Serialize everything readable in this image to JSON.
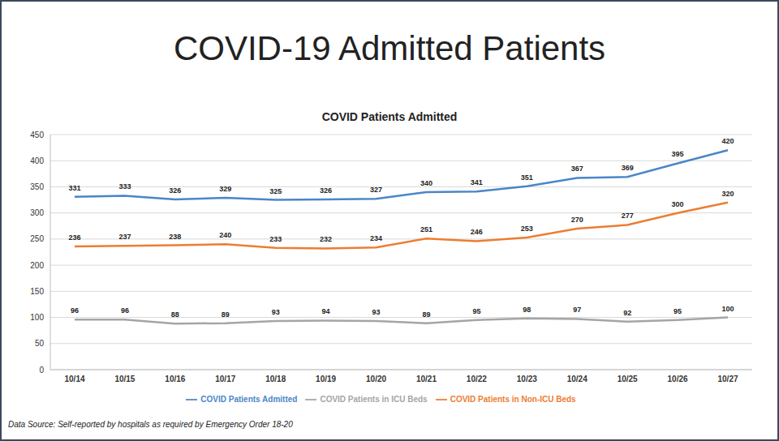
{
  "header": {
    "title": "COVID-19 Admitted Patients"
  },
  "footer": {
    "source": "Data Source: Self-reported by hospitals as required by Emergency Order 18-20"
  },
  "chart_data": {
    "type": "line",
    "title": "COVID Patients Admitted",
    "categories": [
      "10/14",
      "10/15",
      "10/16",
      "10/17",
      "10/18",
      "10/19",
      "10/20",
      "10/21",
      "10/22",
      "10/23",
      "10/24",
      "10/25",
      "10/26",
      "10/27"
    ],
    "series": [
      {
        "name": "COVID Patients Admitted",
        "color": "#4a86c8",
        "values": [
          331,
          333,
          326,
          329,
          325,
          326,
          327,
          340,
          341,
          351,
          367,
          369,
          395,
          420
        ]
      },
      {
        "name": "COVID Patients in ICU Beds",
        "color": "#a5a5a5",
        "values": [
          96,
          96,
          88,
          89,
          93,
          94,
          93,
          89,
          95,
          98,
          97,
          92,
          95,
          100
        ]
      },
      {
        "name": "COVID Patients in Non-ICU Beds",
        "color": "#ed7d31",
        "values": [
          236,
          237,
          238,
          240,
          233,
          232,
          234,
          251,
          246,
          253,
          270,
          277,
          300,
          320
        ]
      }
    ],
    "ylim": [
      0,
      450
    ],
    "yticks": [
      0,
      50,
      100,
      150,
      200,
      250,
      300,
      350,
      400,
      450
    ],
    "grid": true,
    "data_labels": true,
    "legend": "bottom"
  }
}
